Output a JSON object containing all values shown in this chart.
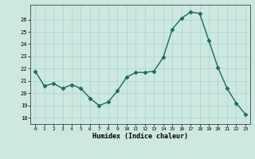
{
  "x": [
    0,
    1,
    2,
    3,
    4,
    5,
    6,
    7,
    8,
    9,
    10,
    11,
    12,
    13,
    14,
    15,
    16,
    17,
    18,
    19,
    20,
    21,
    22,
    23
  ],
  "y": [
    21.8,
    20.6,
    20.8,
    20.4,
    20.7,
    20.4,
    19.6,
    19.0,
    19.3,
    20.2,
    21.3,
    21.7,
    21.7,
    21.8,
    22.9,
    25.2,
    26.1,
    26.6,
    26.5,
    24.3,
    22.1,
    20.4,
    19.2,
    18.3
  ],
  "xlim": [
    -0.5,
    23.5
  ],
  "ylim": [
    17.5,
    27.2
  ],
  "yticks": [
    18,
    19,
    20,
    21,
    22,
    23,
    24,
    25,
    26
  ],
  "xticks": [
    0,
    1,
    2,
    3,
    4,
    5,
    6,
    7,
    8,
    9,
    10,
    11,
    12,
    13,
    14,
    15,
    16,
    17,
    18,
    19,
    20,
    21,
    22,
    23
  ],
  "xlabel": "Humidex (Indice chaleur)",
  "line_color": "#1a6b5a",
  "marker_color": "#1a6b5a",
  "bg_color": "#cce8e0",
  "grid_color": "#aad4cc",
  "axis_color": "#444444",
  "font_color": "#000000"
}
